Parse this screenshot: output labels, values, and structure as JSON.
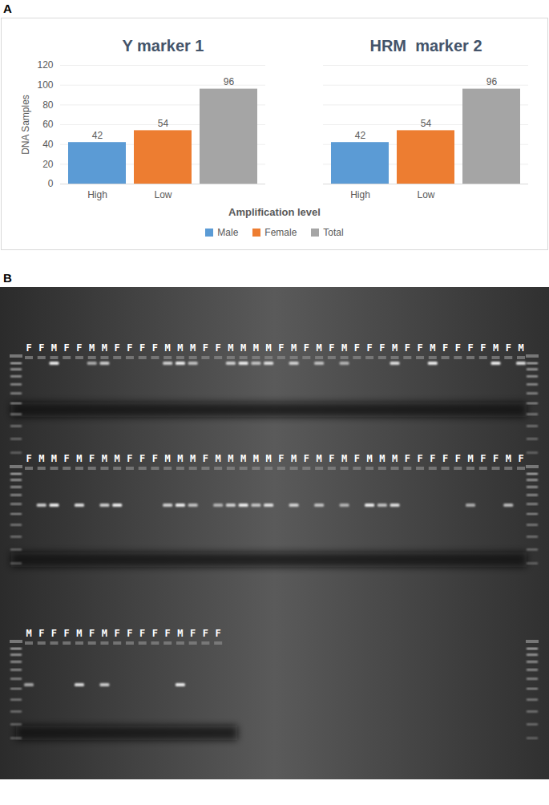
{
  "chart_data": {
    "type": "bar",
    "panel_label": "A",
    "categories": [
      "Y marker 1",
      "HRM  marker 2"
    ],
    "subcategories": [
      "High",
      "Low",
      null
    ],
    "series": [
      {
        "name": "Male",
        "color": "#5B9BD5",
        "values": [
          42,
          42
        ]
      },
      {
        "name": "Female",
        "color": "#ED7D31",
        "values": [
          54,
          54
        ]
      },
      {
        "name": "Total",
        "color": "#A5A5A5",
        "values": [
          96,
          96
        ]
      }
    ],
    "y_label": "DNA Samples",
    "x_label": "Amplification level",
    "ylim": [
      0,
      120
    ],
    "yticks": [
      0,
      20,
      40,
      60,
      80,
      100,
      120
    ],
    "grid": true,
    "data_labels": true,
    "legend": "bottom"
  },
  "gel": {
    "panel_label": "B",
    "rows": [
      [
        "F",
        "F",
        "M",
        "F",
        "F",
        "M",
        "M",
        "F",
        "F",
        "F",
        "F",
        "M",
        "M",
        "M",
        "F",
        "F",
        "M",
        "M",
        "M",
        "M",
        "F",
        "M",
        "F",
        "M",
        "F",
        "M",
        "F",
        "F",
        "F",
        "M",
        "F",
        "F",
        "M",
        "F",
        "F",
        "F",
        "F",
        "M",
        "F",
        "M"
      ],
      [
        "F",
        "M",
        "M",
        "F",
        "M",
        "F",
        "M",
        "M",
        "F",
        "F",
        "F",
        "M",
        "M",
        "M",
        "F",
        "M",
        "M",
        "M",
        "M",
        "M",
        "F",
        "M",
        "F",
        "M",
        "F",
        "M",
        "F",
        "M",
        "M",
        "M",
        "F",
        "F",
        "F",
        "F",
        "F",
        "M",
        "F",
        "F",
        "M",
        "F"
      ],
      [
        "M",
        "F",
        "F",
        "F",
        "M",
        "F",
        "M",
        "F",
        "F",
        "F",
        "F",
        "F",
        "M",
        "F",
        "F",
        "F"
      ]
    ]
  }
}
